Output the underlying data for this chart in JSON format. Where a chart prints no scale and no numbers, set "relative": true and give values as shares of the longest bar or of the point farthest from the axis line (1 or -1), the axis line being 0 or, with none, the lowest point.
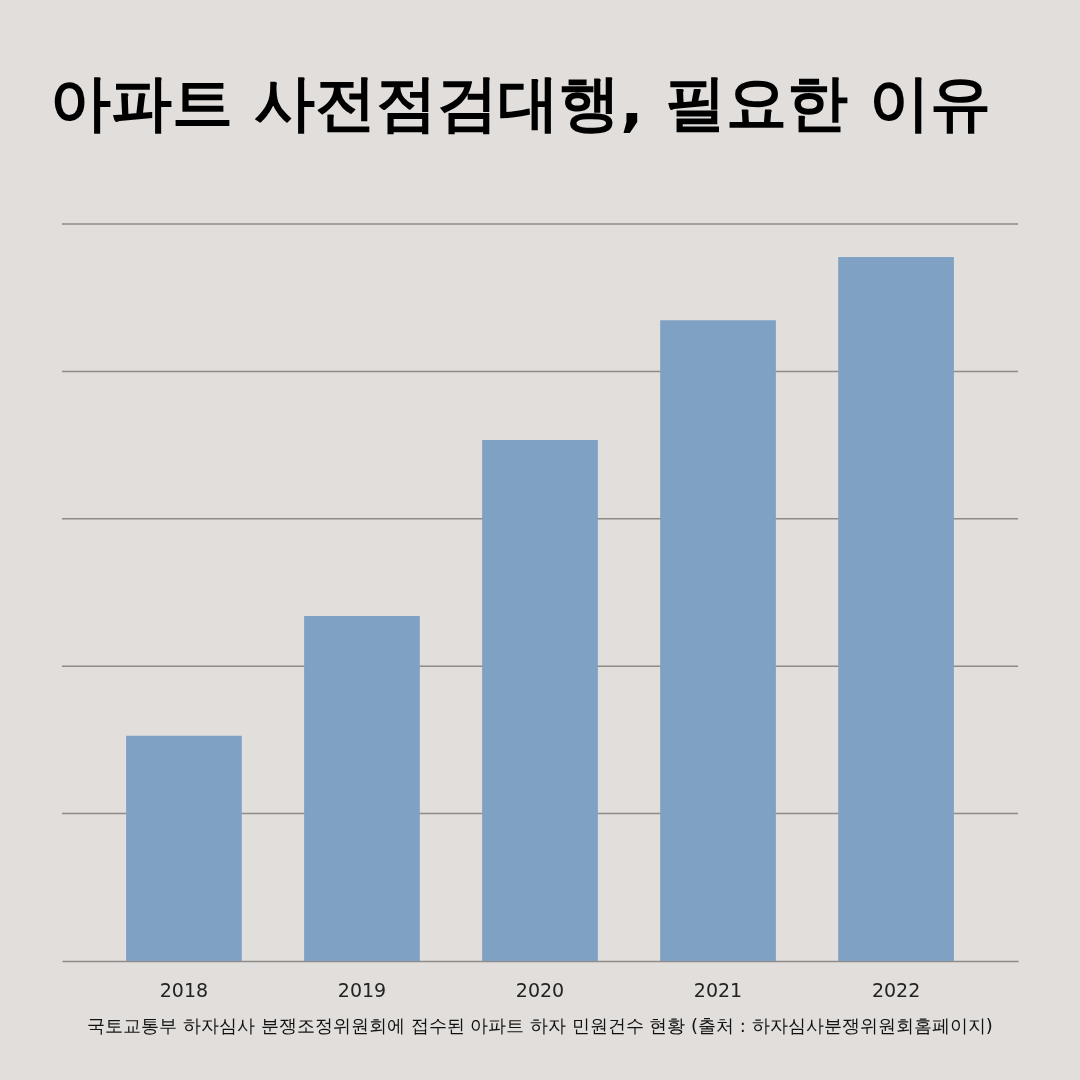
{
  "chart_data": {
    "type": "bar",
    "title": "아파트 사전점검대행, 필요한 이유",
    "categories": [
      "2018",
      "2019",
      "2020",
      "2021",
      "2022"
    ],
    "values": [
      0.32,
      0.49,
      0.74,
      0.91,
      1
    ],
    "color": "#7fa2c4",
    "relative": true,
    "grid": true,
    "annotations": [
      "국토교통부 하자심사 분쟁조정위원회에 접수된 아파트 하자 민원건수 현황 (출처 : 하자심사분쟁위원회홈페이지)"
    ]
  }
}
